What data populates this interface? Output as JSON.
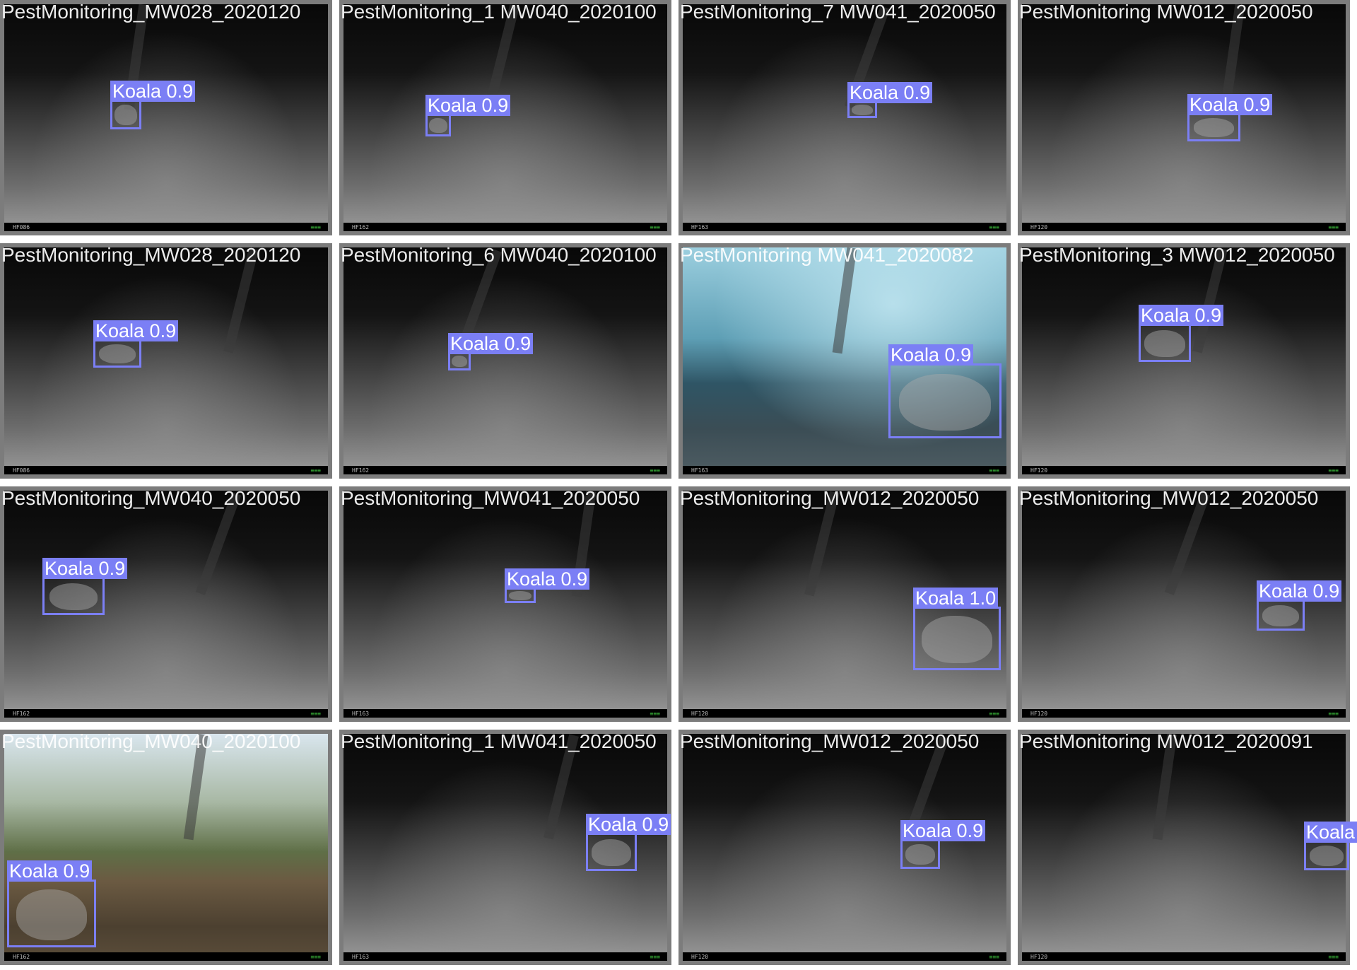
{
  "colors": {
    "box": "#7b7ff5",
    "tile_border": "#7c7c7c",
    "label_text": "#ffffff"
  },
  "tiles": [
    {
      "filename": "PestMonitoring_MW028_2020120",
      "label": "Koala 0.9",
      "camera": "HF086",
      "scene": "night"
    },
    {
      "filename": "PestMonitoring_1 MW040_2020100",
      "label": "Koala 0.9",
      "camera": "HF162",
      "scene": "night"
    },
    {
      "filename": "PestMonitoring_7 MW041_2020050",
      "label": "Koala 0.9",
      "camera": "HF163",
      "scene": "night"
    },
    {
      "filename": "PestMonitoring MW012_2020050",
      "label": "Koala 0.9",
      "camera": "HF120",
      "scene": "night"
    },
    {
      "filename": "PestMonitoring_MW028_2020120",
      "label": "Koala 0.9",
      "camera": "HF086",
      "scene": "night"
    },
    {
      "filename": "PestMonitoring_6 MW040_2020100",
      "label": "Koala 0.9",
      "camera": "HF162",
      "scene": "night"
    },
    {
      "filename": "PestMonitoring MW041_2020082",
      "label": "Koala 0.9",
      "camera": "HF163",
      "scene": "fog"
    },
    {
      "filename": "PestMonitoring_3 MW012_2020050",
      "label": "Koala 0.9",
      "camera": "HF120",
      "scene": "night"
    },
    {
      "filename": "PestMonitoring_MW040_2020050",
      "label": "Koala 0.9",
      "camera": "HF162",
      "scene": "night"
    },
    {
      "filename": "PestMonitoring_MW041_2020050",
      "label": "Koala 0.9",
      "camera": "HF163",
      "scene": "night"
    },
    {
      "filename": "PestMonitoring_MW012_2020050",
      "label": "Koala 1.0",
      "camera": "HF120",
      "scene": "night"
    },
    {
      "filename": "PestMonitoring_MW012_2020050",
      "label": "Koala 0.9",
      "camera": "HF120",
      "scene": "night"
    },
    {
      "filename": "PestMonitoring_MW040_2020100",
      "label": "Koala 0.9",
      "camera": "HF162",
      "scene": "day"
    },
    {
      "filename": "PestMonitoring_1 MW041_2020050",
      "label": "Koala 0.9",
      "camera": "HF163",
      "scene": "night"
    },
    {
      "filename": "PestMonitoring_MW012_2020050",
      "label": "Koala 0.9",
      "camera": "HF120",
      "scene": "night"
    },
    {
      "filename": "PestMonitoring MW012_2020091",
      "label": "Koala",
      "camera": "HF120",
      "scene": "night"
    }
  ]
}
